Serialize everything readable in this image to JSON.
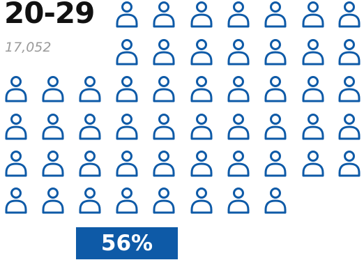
{
  "chart_data": {
    "type": "icon-array",
    "title": "20-29",
    "count": "17,052",
    "percent": "56%",
    "icon": "person-icon",
    "icons_shown": 52,
    "color": "#0e5aa7"
  }
}
